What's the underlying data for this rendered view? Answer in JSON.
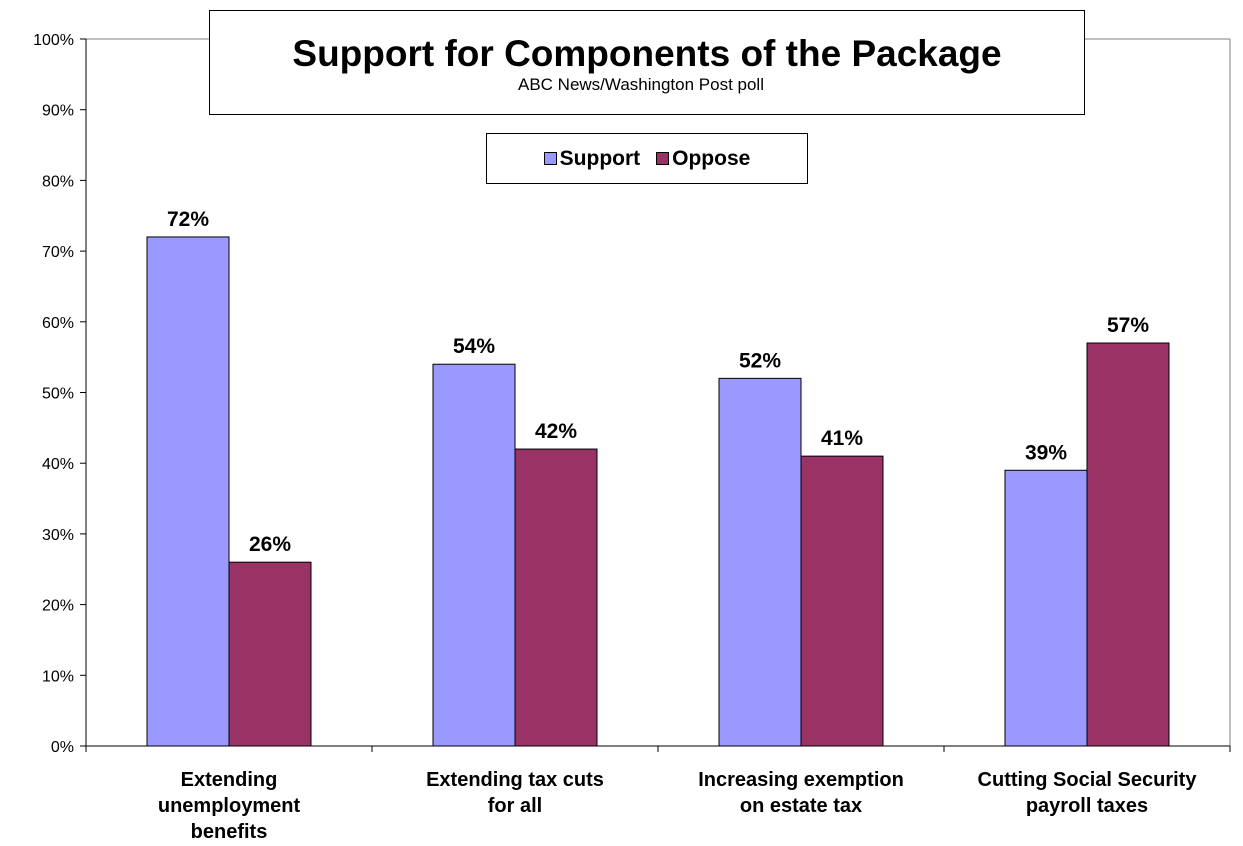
{
  "chart_data": {
    "type": "bar",
    "title": "Support for Components of the Package",
    "subtitle": "ABC News/Washington Post poll",
    "categories": [
      [
        "Extending",
        "unemployment",
        "benefits"
      ],
      [
        "Extending tax cuts",
        "for all"
      ],
      [
        "Increasing exemption",
        "on estate tax"
      ],
      [
        "Cutting Social Security",
        "payroll taxes"
      ]
    ],
    "series": [
      {
        "name": "Support",
        "values": [
          72,
          54,
          52,
          39
        ],
        "color": "#9999ff"
      },
      {
        "name": "Oppose",
        "values": [
          26,
          42,
          41,
          57
        ],
        "color": "#993366"
      }
    ],
    "data_labels": [
      [
        "72%",
        "54%",
        "52%",
        "39%"
      ],
      [
        "26%",
        "42%",
        "41%",
        "57%"
      ]
    ],
    "yticks": [
      "0%",
      "10%",
      "20%",
      "30%",
      "40%",
      "50%",
      "60%",
      "70%",
      "80%",
      "90%",
      "100%"
    ],
    "ylim": [
      0,
      100
    ],
    "grid": false,
    "legend_position": "top-center"
  }
}
